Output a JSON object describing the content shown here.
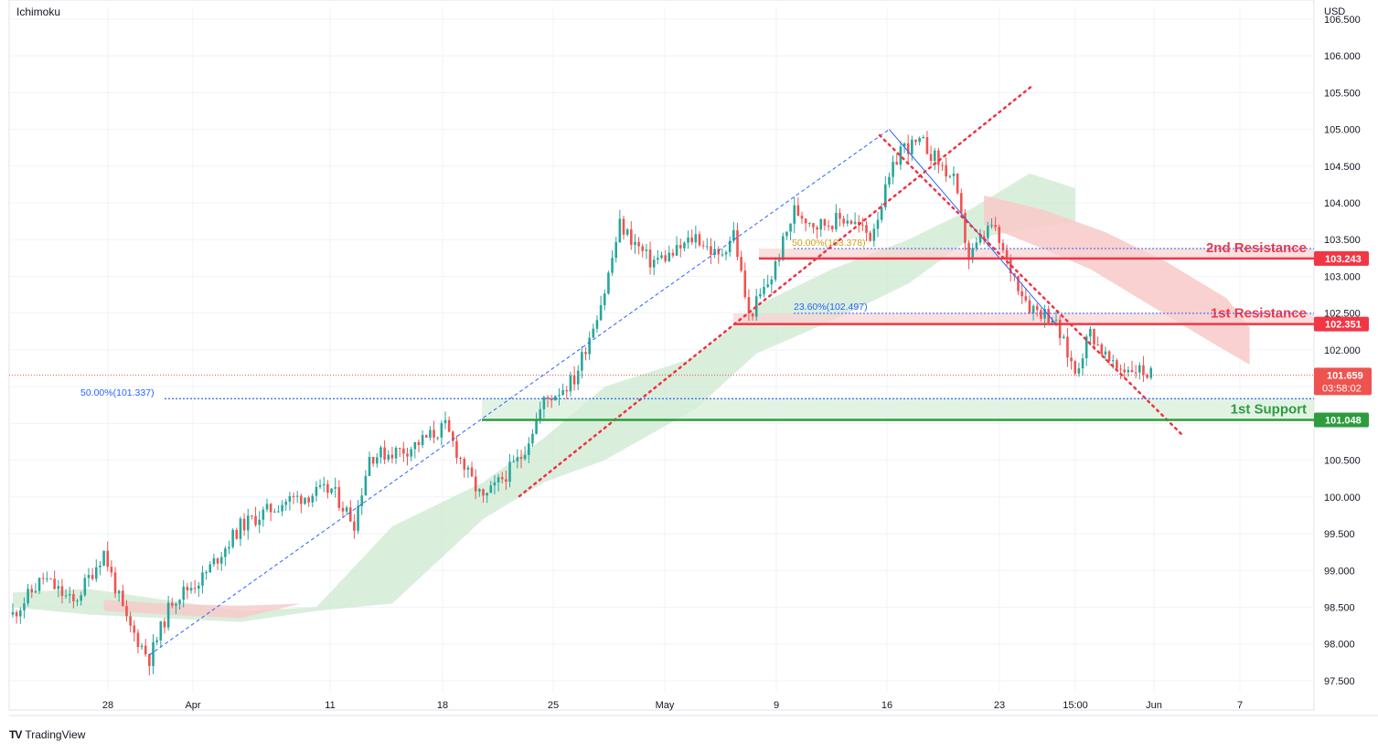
{
  "indicator_label": "Ichimoku",
  "brand": {
    "logo": "TV",
    "name": "TradingView"
  },
  "colors": {
    "up": "#26a69a",
    "down": "#ef5350",
    "grid": "#f0f3fa",
    "axis_text": "#131722",
    "resistance": "#f23645",
    "support": "#2e9c3e",
    "fib_text": "#2962ff",
    "fib_gold": "#d4a017",
    "cloud_up": "#cde8d0",
    "cloud_down": "#f8c9c9",
    "zone_res": "#f9d3d3",
    "zone_sup": "#d6eed8",
    "trend": "#ef3340",
    "fib_line": "#2962ff"
  },
  "chart_data": {
    "type": "candlestick",
    "title": "",
    "currency": "USD",
    "ylim": [
      97.35,
      106.66
    ],
    "y_ticks": [
      "106.500",
      "106.000",
      "105.500",
      "105.000",
      "104.500",
      "104.000",
      "103.500",
      "103.000",
      "102.500",
      "102.000",
      "101.500",
      "101.000",
      "100.500",
      "100.000",
      "99.500",
      "99.000",
      "98.500",
      "98.000",
      "97.500"
    ],
    "x_labels": [
      "28",
      "Apr",
      "11",
      "18",
      "25",
      "May",
      "9",
      "16",
      "23",
      "15:00",
      "Jun",
      "7"
    ],
    "anchors": [
      {
        "d": 0,
        "p": 98.4
      },
      {
        "d": 4,
        "p": 98.9
      },
      {
        "d": 8,
        "p": 98.55
      },
      {
        "d": 12,
        "p": 99.25
      },
      {
        "d": 15,
        "p": 98.3
      },
      {
        "d": 18,
        "p": 97.8
      },
      {
        "d": 21,
        "p": 98.6
      },
      {
        "d": 25,
        "p": 98.9
      },
      {
        "d": 30,
        "p": 99.6
      },
      {
        "d": 36,
        "p": 99.95
      },
      {
        "d": 42,
        "p": 100.1
      },
      {
        "d": 45,
        "p": 99.65
      },
      {
        "d": 47,
        "p": 100.55
      },
      {
        "d": 52,
        "p": 100.65
      },
      {
        "d": 57,
        "p": 100.95
      },
      {
        "d": 60,
        "p": 100.3
      },
      {
        "d": 62,
        "p": 99.95
      },
      {
        "d": 67,
        "p": 100.55
      },
      {
        "d": 70,
        "p": 101.3
      },
      {
        "d": 74,
        "p": 101.6
      },
      {
        "d": 78,
        "p": 102.8
      },
      {
        "d": 80,
        "p": 103.7
      },
      {
        "d": 84,
        "p": 103.2
      },
      {
        "d": 87,
        "p": 103.3
      },
      {
        "d": 90,
        "p": 103.55
      },
      {
        "d": 93,
        "p": 103.25
      },
      {
        "d": 95,
        "p": 103.6
      },
      {
        "d": 97,
        "p": 102.45
      },
      {
        "d": 100,
        "p": 103.0
      },
      {
        "d": 103,
        "p": 103.9
      },
      {
        "d": 106,
        "p": 103.7
      },
      {
        "d": 110,
        "p": 103.8
      },
      {
        "d": 113,
        "p": 103.55
      },
      {
        "d": 117,
        "p": 104.75
      },
      {
        "d": 120,
        "p": 104.8
      },
      {
        "d": 124,
        "p": 104.3
      },
      {
        "d": 126,
        "p": 103.25
      },
      {
        "d": 129,
        "p": 103.7
      },
      {
        "d": 131,
        "p": 103.2
      },
      {
        "d": 134,
        "p": 102.6
      },
      {
        "d": 137,
        "p": 102.45
      },
      {
        "d": 140,
        "p": 101.7
      },
      {
        "d": 142,
        "p": 102.25
      },
      {
        "d": 145,
        "p": 101.75
      },
      {
        "d": 148,
        "p": 101.75
      },
      {
        "d": 150,
        "p": 101.66
      }
    ],
    "cloud_span": [
      0,
      163
    ],
    "cloud_top": [
      {
        "d": 0,
        "p": 98.7
      },
      {
        "d": 10,
        "p": 98.75
      },
      {
        "d": 20,
        "p": 98.6
      },
      {
        "d": 30,
        "p": 98.45
      },
      {
        "d": 40,
        "p": 98.5
      },
      {
        "d": 50,
        "p": 99.6
      },
      {
        "d": 62,
        "p": 100.2
      },
      {
        "d": 70,
        "p": 100.8
      },
      {
        "d": 78,
        "p": 101.5
      },
      {
        "d": 90,
        "p": 101.9
      },
      {
        "d": 98,
        "p": 102.6
      },
      {
        "d": 108,
        "p": 103.1
      },
      {
        "d": 118,
        "p": 103.5
      },
      {
        "d": 126,
        "p": 103.9
      },
      {
        "d": 134,
        "p": 104.4
      },
      {
        "d": 140,
        "p": 104.2
      },
      {
        "d": 148,
        "p": 103.9
      },
      {
        "d": 155,
        "p": 103.4
      },
      {
        "d": 163,
        "p": 102.6
      }
    ],
    "cloud_bottom": [
      {
        "d": 0,
        "p": 98.5
      },
      {
        "d": 10,
        "p": 98.4
      },
      {
        "d": 20,
        "p": 98.35
      },
      {
        "d": 30,
        "p": 98.3
      },
      {
        "d": 40,
        "p": 98.45
      },
      {
        "d": 50,
        "p": 98.55
      },
      {
        "d": 62,
        "p": 99.7
      },
      {
        "d": 70,
        "p": 100.2
      },
      {
        "d": 78,
        "p": 100.5
      },
      {
        "d": 90,
        "p": 101.2
      },
      {
        "d": 98,
        "p": 101.95
      },
      {
        "d": 108,
        "p": 102.4
      },
      {
        "d": 118,
        "p": 102.9
      },
      {
        "d": 126,
        "p": 103.5
      },
      {
        "d": 134,
        "p": 103.65
      },
      {
        "d": 140,
        "p": 103.75
      },
      {
        "d": 148,
        "p": 102.9
      },
      {
        "d": 155,
        "p": 102.1
      },
      {
        "d": 163,
        "p": 101.8
      }
    ],
    "levels": {
      "resistance_2": {
        "label": "2nd Resistance",
        "value": "103.243",
        "zone_top": 103.378
      },
      "resistance_1": {
        "label": "1st Resistance",
        "value": "102.351",
        "zone_top": 102.497
      },
      "support_1": {
        "label": "1st Support",
        "value": "101.048",
        "zone_top": 101.337
      },
      "current": {
        "value": "101.659",
        "countdown": "03:58:02"
      }
    },
    "fib_labels": {
      "fib_50_high": "50.00%(103.378)",
      "fib_236": "23.60%(102.497)",
      "fib_50_low": "50.00%(101.337)"
    }
  }
}
